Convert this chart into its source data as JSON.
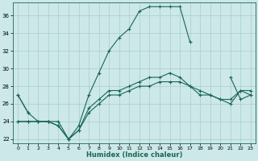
{
  "title": "",
  "xlabel": "Humidex (Indice chaleur)",
  "bg_color": "#cce8e8",
  "grid_color": "#aacccc",
  "line_color": "#1a6655",
  "xlim": [
    -0.5,
    23.5
  ],
  "ylim": [
    21.5,
    37.5
  ],
  "x_ticks": [
    0,
    1,
    2,
    3,
    4,
    5,
    6,
    7,
    8,
    9,
    10,
    11,
    12,
    13,
    14,
    15,
    16,
    17,
    18,
    19,
    20,
    21,
    22,
    23
  ],
  "y_ticks": [
    22,
    24,
    26,
    28,
    30,
    32,
    34,
    36
  ],
  "series": [
    [
      27,
      25,
      null,
      null,
      null,
      null,
      null,
      null,
      null,
      null,
      null,
      null,
      null,
      null,
      null,
      null,
      null,
      null,
      null,
      null,
      null,
      null,
      null,
      null
    ],
    [
      27,
      25,
      24,
      24,
      24,
      22,
      23.5,
      27,
      29.5,
      32,
      33.5,
      34.5,
      36.5,
      37,
      37,
      37,
      37,
      33,
      null,
      null,
      null,
      29,
      26.5,
      27
    ],
    [
      24,
      24,
      24,
      24,
      23.5,
      22,
      23,
      25.5,
      26.5,
      27.5,
      27.5,
      28,
      28.5,
      29,
      29,
      29.5,
      29,
      28,
      27.5,
      27,
      26.5,
      26,
      27.5,
      27
    ],
    [
      24,
      24,
      24,
      24,
      23.5,
      22,
      23,
      25,
      26,
      27,
      27,
      27.5,
      28,
      28,
      28.5,
      28.5,
      28.5,
      28,
      27,
      27,
      26.5,
      26.5,
      27.5,
      27.5
    ]
  ],
  "figsize": [
    3.2,
    2.0
  ],
  "dpi": 100
}
